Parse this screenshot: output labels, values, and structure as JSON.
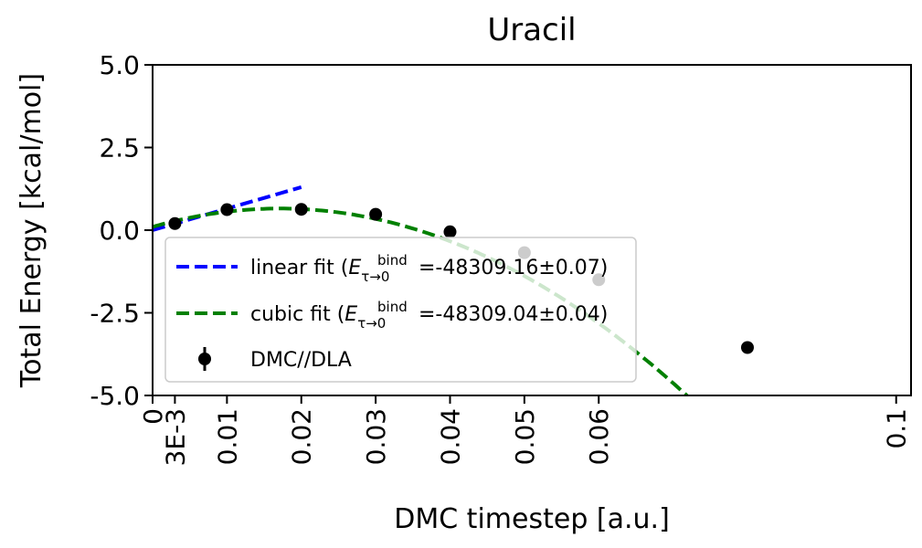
{
  "chart_data": {
    "type": "scatter",
    "title": "Uracil",
    "xlabel": "DMC timestep [a.u.]",
    "ylabel": "Total Energy [kcal/mol]",
    "xlim": [
      0,
      0.102
    ],
    "ylim": [
      -5.0,
      5.0
    ],
    "grid": false,
    "legend_position": "lower-left",
    "x_ticks": [
      {
        "value": 0,
        "label": "0"
      },
      {
        "value": 0.003,
        "label": "3E-3"
      },
      {
        "value": 0.01,
        "label": "0.01"
      },
      {
        "value": 0.02,
        "label": "0.02"
      },
      {
        "value": 0.03,
        "label": "0.03"
      },
      {
        "value": 0.04,
        "label": "0.04"
      },
      {
        "value": 0.05,
        "label": "0.05"
      },
      {
        "value": 0.06,
        "label": "0.06"
      },
      {
        "value": 0.1,
        "label": "0.1"
      }
    ],
    "y_ticks": [
      {
        "value": 5.0,
        "label": "5.0"
      },
      {
        "value": 2.5,
        "label": "2.5"
      },
      {
        "value": 0.0,
        "label": "0.0"
      },
      {
        "value": -2.5,
        "label": "-2.5"
      },
      {
        "value": -5.0,
        "label": "-5.0"
      }
    ],
    "series": [
      {
        "name": "DMC//DLA",
        "kind": "points",
        "color": "#000000",
        "x": [
          0.003,
          0.01,
          0.02,
          0.03,
          0.04,
          0.05,
          0.06,
          0.08
        ],
        "y": [
          0.2,
          0.62,
          0.63,
          0.48,
          -0.05,
          -0.68,
          -1.5,
          -3.55
        ]
      },
      {
        "name": "linear fit",
        "kind": "line",
        "color": "#0000ff",
        "x": [
          0,
          0.02
        ],
        "y": [
          0.0,
          1.3
        ],
        "legend_value": "=-48309.16±0.07"
      },
      {
        "name": "cubic fit",
        "kind": "curve",
        "color": "#008000",
        "coefficients": [
          0.1,
          64.7,
          -1888.9,
          0
        ],
        "x_range": [
          0,
          0.093
        ],
        "legend_value": "=-48309.04±0.04"
      }
    ],
    "legend": {
      "symbol_main": "E",
      "symbol_superscript": "bind",
      "symbol_subscript": "τ→0",
      "open_paren": "(",
      "close_paren": ")"
    }
  },
  "colors": {
    "background": "#ffffff",
    "axes": "#000000",
    "linear": "#0000ff",
    "cubic": "#008000",
    "points": "#000000"
  }
}
